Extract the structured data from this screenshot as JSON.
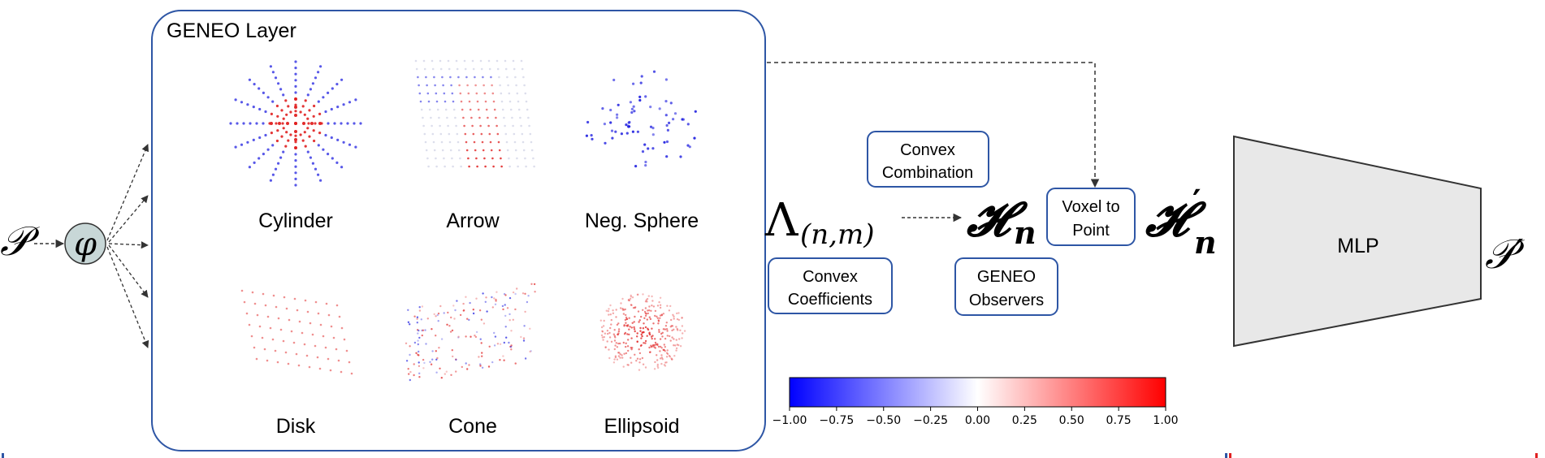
{
  "input_symbol": "𝒫",
  "phi_symbol": "φ",
  "layer_title": "GENEO Layer",
  "kernels": [
    "Cylinder",
    "Arrow",
    "Neg. Sphere",
    "Disk",
    "Cone",
    "Ellipsoid"
  ],
  "lambda": {
    "main": "Λ",
    "sub": "(n,m)"
  },
  "convex_coefficients": [
    "Convex",
    "Coefficients"
  ],
  "convex_combination": [
    "Convex",
    "Combination"
  ],
  "h_n": {
    "main": "𝓗",
    "sub": "n"
  },
  "geneo_observers": [
    "GENEO",
    "Observers"
  ],
  "voxel_to_point": [
    "Voxel to",
    "Point"
  ],
  "h_prime_n": {
    "main": "𝓗",
    "prime": "′",
    "sub": "n"
  },
  "mlp_label": "MLP",
  "output_symbol": "𝒫′",
  "colorbar": {
    "ticks": [
      "−1.00",
      "−0.75",
      "−0.50",
      "−0.25",
      "0.00",
      "0.25",
      "0.50",
      "0.75",
      "1.00"
    ],
    "colors": [
      "#0000ff",
      "#ffffff",
      "#ff0000"
    ]
  },
  "colors": {
    "box_border": "#2e56a5",
    "mlp_fill": "#e8e8e8",
    "phi_fill": "#c8d7d7",
    "neg": "#2020e0",
    "pos": "#e02020"
  }
}
